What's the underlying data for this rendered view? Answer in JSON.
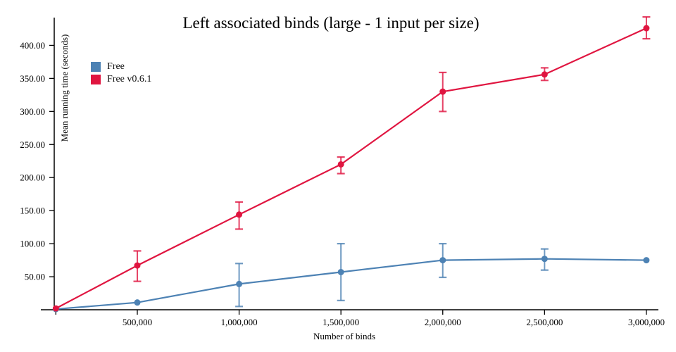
{
  "chart": {
    "title": "Left associated binds (large - 1 input per size)",
    "xlabel": "Number of binds",
    "ylabel": "Mean running time (seconds)"
  },
  "chart_data": {
    "type": "line",
    "title": "Left associated binds (large - 1 input per size)",
    "xlabel": "Number of binds",
    "ylabel": "Mean running time (seconds)",
    "grid": false,
    "legend_position": "top-left-inside",
    "x": [
      100000,
      500000,
      1000000,
      1500000,
      2000000,
      2500000,
      3000000
    ],
    "xlim": [
      92000,
      3059000
    ],
    "ylim": [
      0,
      442
    ],
    "x_ticks": [
      500000,
      1000000,
      1500000,
      2000000,
      2500000,
      3000000
    ],
    "x_tick_labels": [
      "500,000",
      "1,000,000",
      "1,500,000",
      "2,000,000",
      "2,500,000",
      "3,000,000"
    ],
    "x_minor_ticks": [
      100000
    ],
    "y_ticks": [
      50,
      100,
      150,
      200,
      250,
      300,
      350,
      400
    ],
    "y_tick_labels": [
      "50.00",
      "100.00",
      "150.00",
      "200.00",
      "250.00",
      "300.00",
      "350.00",
      "400.00"
    ],
    "axis_color": "#000000",
    "series": [
      {
        "name": "Free",
        "color": "#4d82b4",
        "values": [
          1,
          11,
          39,
          57,
          75,
          77,
          75
        ],
        "error_low": [
          1,
          11,
          5,
          14,
          49,
          60,
          75
        ],
        "error_high": [
          1,
          11,
          70,
          100,
          100,
          92,
          75
        ]
      },
      {
        "name": "Free v0.6.1",
        "color": "#e01540",
        "values": [
          2,
          67,
          144,
          220,
          330,
          356,
          426
        ],
        "error_low": [
          2,
          43,
          122,
          206,
          300,
          347,
          410
        ],
        "error_high": [
          2,
          89,
          163,
          231,
          359,
          366,
          443
        ]
      }
    ]
  }
}
